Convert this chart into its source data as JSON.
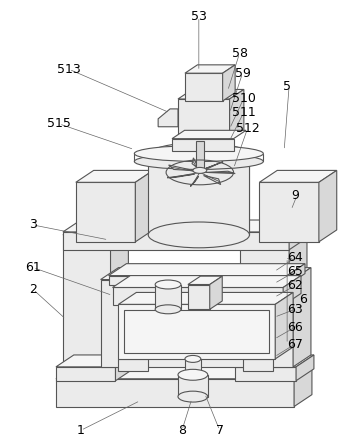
{
  "bg_color": "#ffffff",
  "line_color": "#555555",
  "label_color": "#000000",
  "fig_width": 3.54,
  "fig_height": 4.44,
  "dpi": 100,
  "lw": 0.8,
  "face_light": "#f5f5f5",
  "face_mid": "#ebebeb",
  "face_dark": "#d8d8d8",
  "face_darker": "#c8c8c8"
}
